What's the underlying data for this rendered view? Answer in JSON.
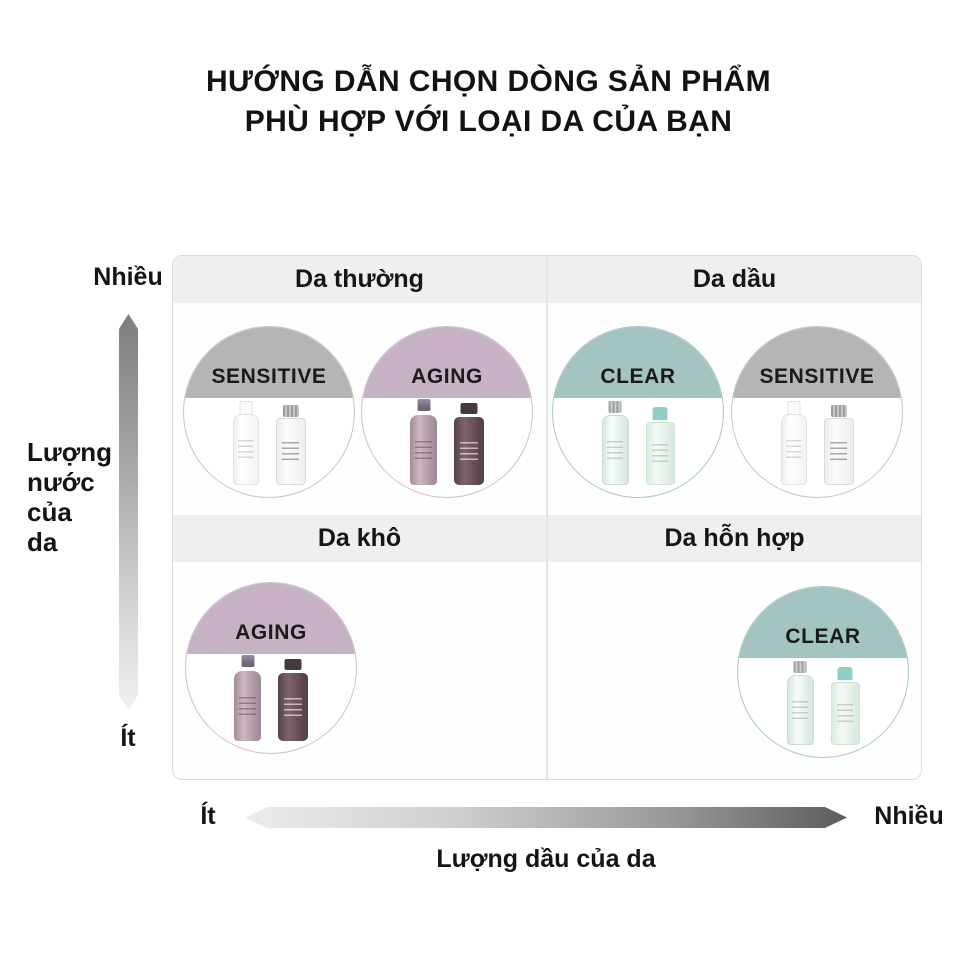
{
  "title": {
    "line1": "HƯỚNG DẪN CHỌN DÒNG SẢN PHẨM",
    "line2": "PHÙ HỢP VỚI LOẠI DA CỦA BẠN"
  },
  "y_axis": {
    "top_label": "Nhiều",
    "bottom_label": "Ít",
    "title_lines": [
      "Lượng",
      "nước",
      "của",
      "da"
    ]
  },
  "x_axis": {
    "left_label": "Ít",
    "right_label": "Nhiều",
    "title": "Lượng dầu của da"
  },
  "quadrants": [
    {
      "id": "top-left",
      "title": "Da thường",
      "products": [
        {
          "line": "SENSITIVE"
        },
        {
          "line": "AGING"
        }
      ]
    },
    {
      "id": "top-right",
      "title": "Da dầu",
      "products": [
        {
          "line": "CLEAR"
        },
        {
          "line": "SENSITIVE"
        }
      ]
    },
    {
      "id": "bottom-left",
      "title": "Da khô",
      "products": [
        {
          "line": "AGING"
        }
      ]
    },
    {
      "id": "bottom-right",
      "title": "Da hỗn hợp",
      "products": [
        {
          "line": "CLEAR"
        }
      ]
    }
  ],
  "colors": {
    "sensitive_band": "#b5b5b5",
    "aging_band": "#c8b2c6",
    "clear_band": "#a3c4c1",
    "quadrant_header_band": "#efefef",
    "axis_gradient_dark": "#5c5c5c",
    "axis_gradient_light": "#ececec",
    "text": "#141414"
  }
}
